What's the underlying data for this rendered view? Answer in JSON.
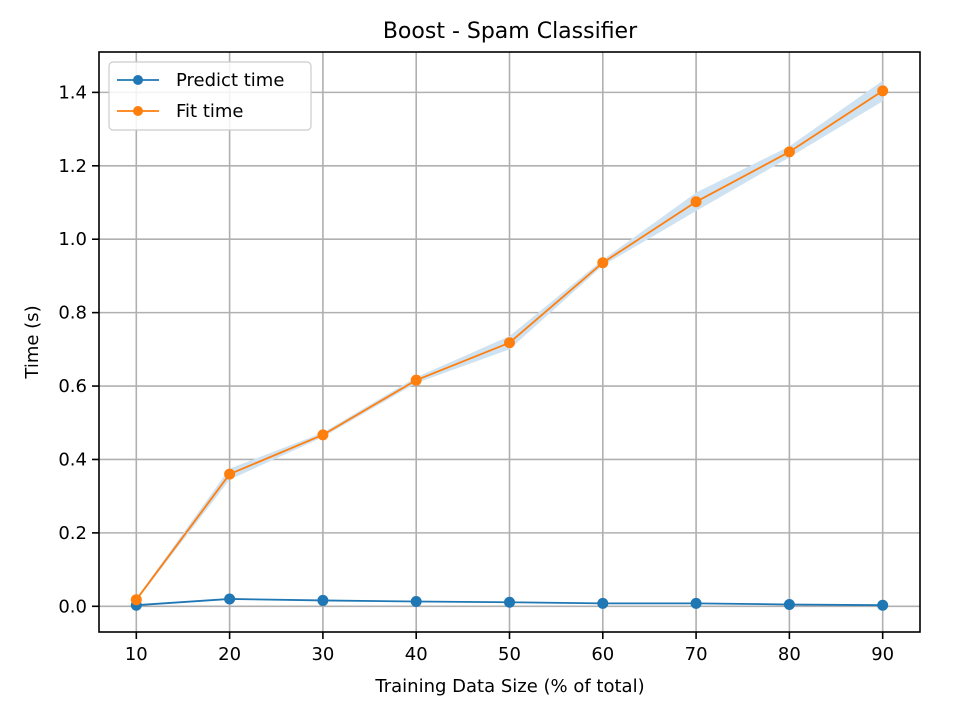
{
  "chart_data": {
    "type": "line",
    "title": "Boost - Spam Classifier",
    "xlabel": "Training Data Size (% of total)",
    "ylabel": "Time (s)",
    "x": [
      10,
      20,
      30,
      40,
      50,
      60,
      70,
      80,
      90
    ],
    "xlim": [
      6,
      94
    ],
    "ylim": [
      -0.07,
      1.51
    ],
    "xticks": [
      10,
      20,
      30,
      40,
      50,
      60,
      70,
      80,
      90
    ],
    "yticks": [
      0.0,
      0.2,
      0.4,
      0.6,
      0.8,
      1.0,
      1.2,
      1.4
    ],
    "ytick_labels": [
      "0.0",
      "0.2",
      "0.4",
      "0.6",
      "0.8",
      "1.0",
      "1.2",
      "1.4"
    ],
    "grid": true,
    "legend_position": "top-left",
    "series": [
      {
        "name": "Predict time",
        "color": "#1f77b4",
        "values": [
          0.003,
          0.02,
          0.016,
          0.013,
          0.011,
          0.008,
          0.008,
          0.005,
          0.003
        ],
        "band": [
          0.001,
          0.001,
          0.001,
          0.001,
          0.001,
          0.001,
          0.001,
          0.001,
          0.001
        ]
      },
      {
        "name": "Fit time",
        "color": "#ff7f0e",
        "values": [
          0.018,
          0.36,
          0.467,
          0.616,
          0.718,
          0.936,
          1.102,
          1.238,
          1.404
        ],
        "band": [
          0.004,
          0.015,
          0.006,
          0.008,
          0.018,
          0.008,
          0.025,
          0.015,
          0.028
        ]
      }
    ],
    "band_color": "#cfe2f1"
  }
}
